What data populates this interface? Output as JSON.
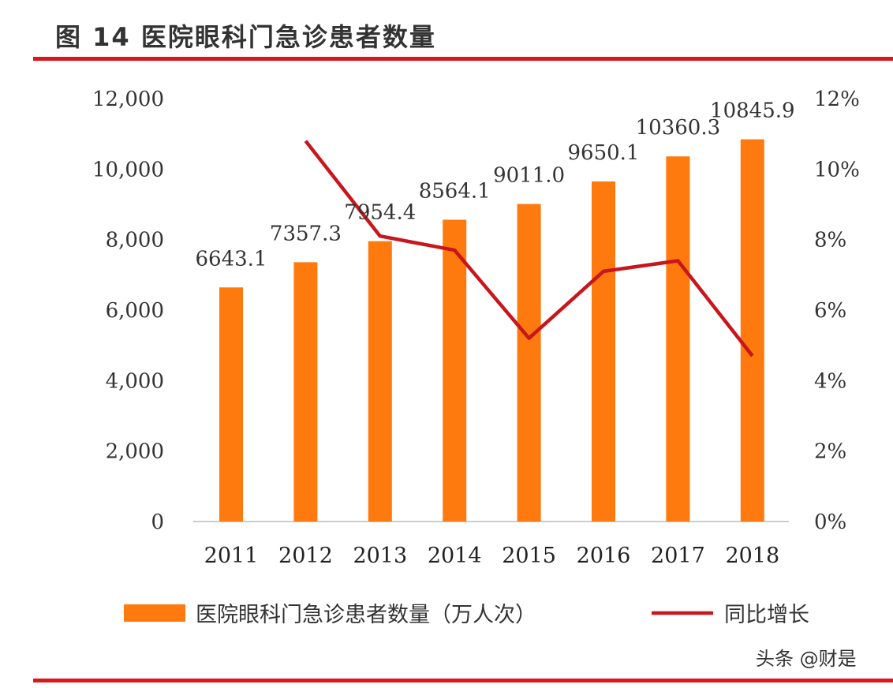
{
  "title": "图 14 医院眼科门急诊患者数量",
  "watermark": "头条 @财是",
  "colors": {
    "bar": "#ff7a0e",
    "line": "#c8161d",
    "rule": "#d7191c"
  },
  "chart_data": {
    "type": "bar+line",
    "categories": [
      "2011",
      "2012",
      "2013",
      "2014",
      "2015",
      "2016",
      "2017",
      "2018"
    ],
    "series": [
      {
        "name": "医院眼科门急诊患者数量（万人次）",
        "type": "bar",
        "axis": "left",
        "values": [
          6643.1,
          7357.3,
          7954.4,
          8564.1,
          9011.0,
          9650.1,
          10360.3,
          10845.9
        ],
        "labels": [
          "6643.1",
          "7357.3",
          "7954.4",
          "8564.1",
          "9011.0",
          "9650.1",
          "10360.3",
          "10845.9"
        ]
      },
      {
        "name": "同比增长",
        "type": "line",
        "axis": "right",
        "values": [
          null,
          10.8,
          8.1,
          7.7,
          5.2,
          7.1,
          7.4,
          4.7
        ]
      }
    ],
    "left_axis": {
      "ylim": [
        0,
        12000
      ],
      "ticks": [
        "0",
        "2,000",
        "4,000",
        "6,000",
        "8,000",
        "10,000",
        "12,000"
      ]
    },
    "right_axis": {
      "ylim": [
        0,
        12
      ],
      "unit": "%",
      "ticks": [
        "0%",
        "2%",
        "4%",
        "6%",
        "8%",
        "10%",
        "12%"
      ]
    },
    "grid": false,
    "legend": "bottom"
  }
}
